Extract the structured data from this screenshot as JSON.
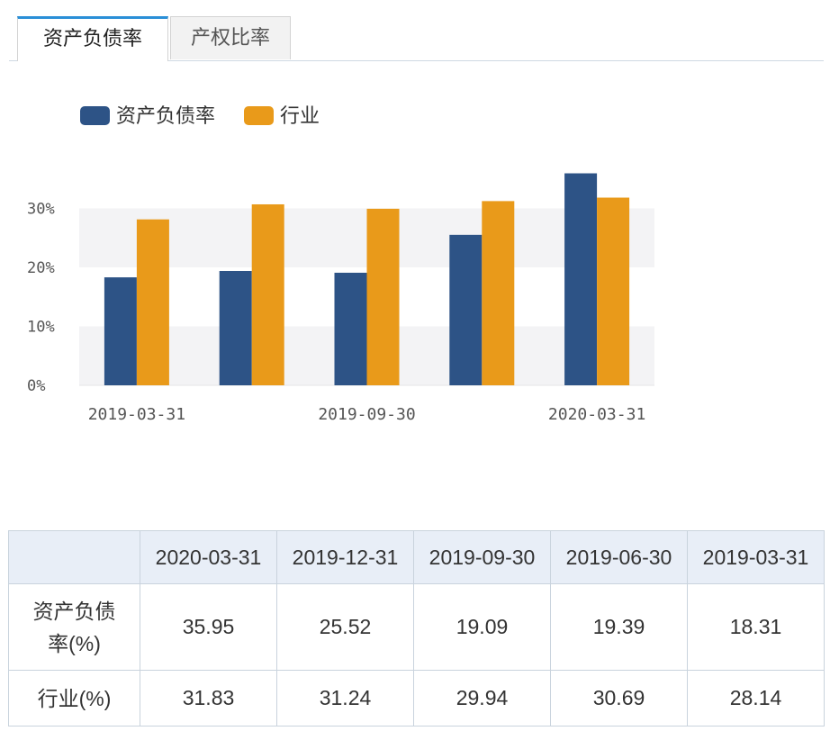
{
  "tabs": [
    {
      "label": "资产负债率",
      "active": true
    },
    {
      "label": "产权比率",
      "active": false
    }
  ],
  "chart_data": {
    "type": "bar",
    "categories": [
      "2019-03-31",
      "2019-06-30",
      "2019-09-30",
      "2019-12-31",
      "2020-03-31"
    ],
    "x_tick_labels": [
      "2019-03-31",
      "2019-09-30",
      "2020-03-31"
    ],
    "series": [
      {
        "name": "资产负债率",
        "color": "#2d5386",
        "values": [
          18.31,
          19.39,
          19.09,
          25.52,
          35.95
        ]
      },
      {
        "name": "行业",
        "color": "#e99a1a",
        "values": [
          28.14,
          30.69,
          29.94,
          31.24,
          31.83
        ]
      }
    ],
    "y_ticks": [
      "0%",
      "10%",
      "20%",
      "30%"
    ],
    "ylim": [
      0,
      40
    ],
    "legend_position": "top-left",
    "grid": "alternating bands"
  },
  "table": {
    "header": [
      "",
      "2020-03-31",
      "2019-12-31",
      "2019-09-30",
      "2019-06-30",
      "2019-03-31"
    ],
    "rows": [
      {
        "label_lines": [
          "资产负债",
          "率(%)"
        ],
        "values": [
          "35.95",
          "25.52",
          "19.09",
          "19.39",
          "18.31"
        ]
      },
      {
        "label_lines": [
          "行业(%)"
        ],
        "values": [
          "31.83",
          "31.24",
          "29.94",
          "30.69",
          "28.14"
        ]
      }
    ]
  }
}
